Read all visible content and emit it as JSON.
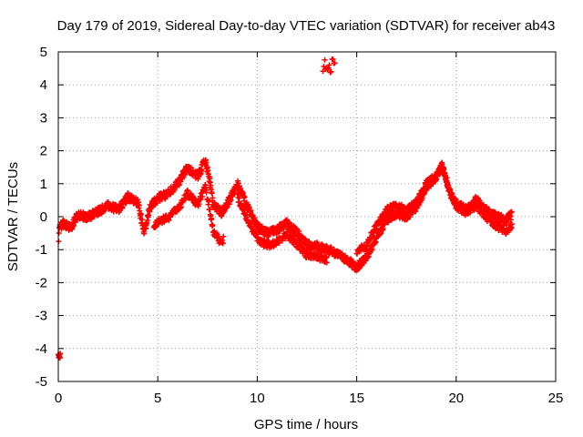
{
  "chart_data": {
    "type": "scatter",
    "title": "Day 179 of 2019, Sidereal Day-to-day VTEC variation (SDTVAR) for receiver ab43",
    "xlabel": "GPS time / hours",
    "ylabel": "SDTVAR / TECUs",
    "xlim": [
      0,
      25
    ],
    "ylim": [
      -5,
      5
    ],
    "xticks": [
      "0",
      "5",
      "10",
      "15",
      "20",
      "25"
    ],
    "yticks": [
      "-5",
      "-4",
      "-3",
      "-2",
      "-1",
      "0",
      "1",
      "2",
      "3",
      "4",
      "5"
    ],
    "grid": true,
    "marker": "+",
    "series_color": "#ff0000",
    "anchors": [
      [
        0.02,
        -0.7
      ],
      [
        0.05,
        -0.3
      ],
      [
        0.3,
        -0.2
      ],
      [
        0.6,
        -0.35
      ],
      [
        1.0,
        0.05
      ],
      [
        1.5,
        0.0
      ],
      [
        2.0,
        0.15
      ],
      [
        2.5,
        0.35
      ],
      [
        3.0,
        0.2
      ],
      [
        3.5,
        0.6
      ],
      [
        4.0,
        0.45
      ],
      [
        4.3,
        -0.5
      ],
      [
        4.6,
        0.3
      ],
      [
        5.0,
        0.55
      ],
      [
        5.5,
        0.7
      ],
      [
        6.0,
        1.0
      ],
      [
        6.5,
        1.5
      ],
      [
        7.0,
        1.2
      ],
      [
        7.4,
        1.75
      ],
      [
        7.8,
        0.4
      ],
      [
        8.2,
        0.1
      ],
      [
        8.6,
        0.5
      ],
      [
        9.0,
        1.0
      ],
      [
        9.5,
        0.3
      ],
      [
        10.0,
        -0.3
      ],
      [
        10.5,
        -0.5
      ],
      [
        11.0,
        -0.4
      ],
      [
        11.5,
        -0.2
      ],
      [
        12.0,
        -0.5
      ],
      [
        12.5,
        -0.85
      ],
      [
        13.0,
        -0.9
      ],
      [
        13.5,
        -1.0
      ],
      [
        14.0,
        -1.1
      ],
      [
        14.5,
        -1.3
      ],
      [
        15.0,
        -1.55
      ],
      [
        15.5,
        -1.25
      ],
      [
        16.0,
        -0.6
      ],
      [
        16.5,
        -0.1
      ],
      [
        17.0,
        0.1
      ],
      [
        17.5,
        0.0
      ],
      [
        18.0,
        0.3
      ],
      [
        18.5,
        0.9
      ],
      [
        19.0,
        1.2
      ],
      [
        19.3,
        1.55
      ],
      [
        19.7,
        0.7
      ],
      [
        20.0,
        0.4
      ],
      [
        20.5,
        0.2
      ],
      [
        21.0,
        0.5
      ],
      [
        21.5,
        0.2
      ],
      [
        22.0,
        0.0
      ],
      [
        22.5,
        -0.1
      ],
      [
        22.8,
        0.05
      ]
    ],
    "parallel_tracks": [
      {
        "from": 4.8,
        "to": 8.3,
        "dy_start": -0.7,
        "dy_end": -0.9
      },
      {
        "from": 9.0,
        "to": 13.5,
        "dy_start": -0.4,
        "dy_end": -0.3
      },
      {
        "from": 15.0,
        "to": 22.8,
        "dy_start": 0.45,
        "dy_end": -0.35
      }
    ],
    "clusters": [
      {
        "x": [
          0.0,
          0.1
        ],
        "y": [
          -4.3,
          -4.15
        ]
      },
      {
        "x": [
          13.3,
          13.9
        ],
        "y": [
          4.35,
          4.8
        ]
      }
    ]
  }
}
